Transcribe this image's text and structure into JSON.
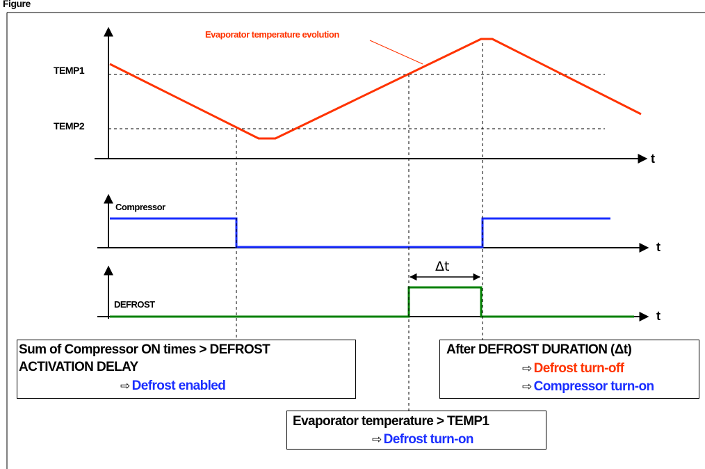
{
  "figure": {
    "header_text": "Figure"
  },
  "temperature_panel": {
    "series_label": "Evaporator temperature evolution",
    "temp1_label": "TEMP1",
    "temp2_label": "TEMP2",
    "axis_label": "t",
    "line_color": "#ff3300"
  },
  "compressor_panel": {
    "label": "Compressor",
    "axis_label": "t",
    "line_color": "#1a2eff"
  },
  "defrost_panel": {
    "label": "DEFROST",
    "axis_label": "t",
    "interval_label": "Δt",
    "line_color": "#008000"
  },
  "boxes": {
    "activation": {
      "line1": "Sum of Compressor ON times > DEFROST",
      "line2": "ACTIVATION DELAY",
      "arrow": "⇨",
      "result": "Defrost enabled"
    },
    "turn_on": {
      "line1": "Evaporator temperature > TEMP1",
      "arrow": "⇨",
      "result": "Defrost turn-on"
    },
    "duration": {
      "line1": "After DEFROST DURATION (Δt)",
      "arrow1": "⇨",
      "result1": "Defrost turn-off",
      "arrow2": "⇨",
      "result2": "Compressor turn-on"
    }
  },
  "colors": {
    "temperature": "#ff3300",
    "compressor": "#1a2eff",
    "defrost": "#008000",
    "axis": "#000000"
  }
}
